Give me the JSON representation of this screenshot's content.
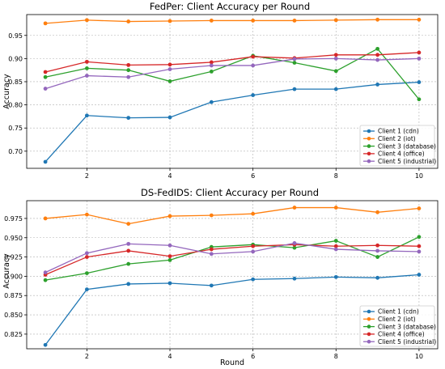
{
  "chart_data": [
    {
      "type": "line",
      "title": "FedPer: Client Accuracy per Round",
      "xlabel": "",
      "ylabel": "Accuracy",
      "xlim": [
        0.55,
        10.45
      ],
      "ylim": [
        0.663,
        0.995
      ],
      "xticks": [
        2,
        4,
        6,
        8,
        10
      ],
      "yticks": [
        0.7,
        0.75,
        0.8,
        0.85,
        0.9,
        0.95
      ],
      "ytick_labels": [
        "0.70",
        "0.75",
        "0.80",
        "0.85",
        "0.90",
        "0.95"
      ],
      "grid": true,
      "legend_position": "lower-right",
      "x": [
        1,
        2,
        3,
        4,
        5,
        6,
        7,
        8,
        9,
        10
      ],
      "series": [
        {
          "name": "Client 1 (cdn)",
          "color": "#1f77b4",
          "values": [
            0.677,
            0.777,
            0.772,
            0.773,
            0.806,
            0.821,
            0.834,
            0.834,
            0.844,
            0.849
          ]
        },
        {
          "name": "Client 2 (iot)",
          "color": "#ff7f0e",
          "values": [
            0.976,
            0.983,
            0.98,
            0.981,
            0.982,
            0.982,
            0.982,
            0.983,
            0.984,
            0.984
          ]
        },
        {
          "name": "Client 3 (database)",
          "color": "#2ca02c",
          "values": [
            0.86,
            0.879,
            0.875,
            0.851,
            0.872,
            0.906,
            0.891,
            0.873,
            0.921,
            0.812
          ]
        },
        {
          "name": "Client 4 (office)",
          "color": "#d62728",
          "values": [
            0.871,
            0.893,
            0.886,
            0.887,
            0.892,
            0.904,
            0.901,
            0.908,
            0.908,
            0.913
          ]
        },
        {
          "name": "Client 5 (industrial)",
          "color": "#9467bd",
          "values": [
            0.835,
            0.863,
            0.86,
            0.877,
            0.885,
            0.885,
            0.899,
            0.9,
            0.897,
            0.9
          ]
        }
      ]
    },
    {
      "type": "line",
      "title": "DS-FedIDS: Client Accuracy per Round",
      "xlabel": "Round",
      "ylabel": "Accuracy",
      "xlim": [
        0.55,
        10.45
      ],
      "ylim": [
        0.806,
        0.998
      ],
      "xticks": [
        2,
        4,
        6,
        8,
        10
      ],
      "yticks": [
        0.825,
        0.85,
        0.875,
        0.9,
        0.925,
        0.95,
        0.975
      ],
      "ytick_labels": [
        "0.825",
        "0.850",
        "0.875",
        "0.900",
        "0.925",
        "0.950",
        "0.975"
      ],
      "grid": true,
      "legend_position": "lower-right",
      "x": [
        1,
        2,
        3,
        4,
        5,
        6,
        7,
        8,
        9,
        10
      ],
      "series": [
        {
          "name": "Client 1 (cdn)",
          "color": "#1f77b4",
          "values": [
            0.811,
            0.883,
            0.89,
            0.891,
            0.888,
            0.896,
            0.897,
            0.899,
            0.898,
            0.902
          ]
        },
        {
          "name": "Client 2 (iot)",
          "color": "#ff7f0e",
          "values": [
            0.975,
            0.98,
            0.968,
            0.978,
            0.979,
            0.981,
            0.989,
            0.989,
            0.983,
            0.988
          ]
        },
        {
          "name": "Client 3 (database)",
          "color": "#2ca02c",
          "values": [
            0.895,
            0.904,
            0.916,
            0.921,
            0.938,
            0.941,
            0.937,
            0.946,
            0.925,
            0.951
          ]
        },
        {
          "name": "Client 4 (office)",
          "color": "#d62728",
          "values": [
            0.902,
            0.925,
            0.933,
            0.926,
            0.935,
            0.939,
            0.941,
            0.939,
            0.94,
            0.939
          ]
        },
        {
          "name": "Client 5 (industrial)",
          "color": "#9467bd",
          "values": [
            0.905,
            0.93,
            0.942,
            0.94,
            0.929,
            0.932,
            0.943,
            0.935,
            0.933,
            0.932
          ]
        }
      ]
    }
  ]
}
